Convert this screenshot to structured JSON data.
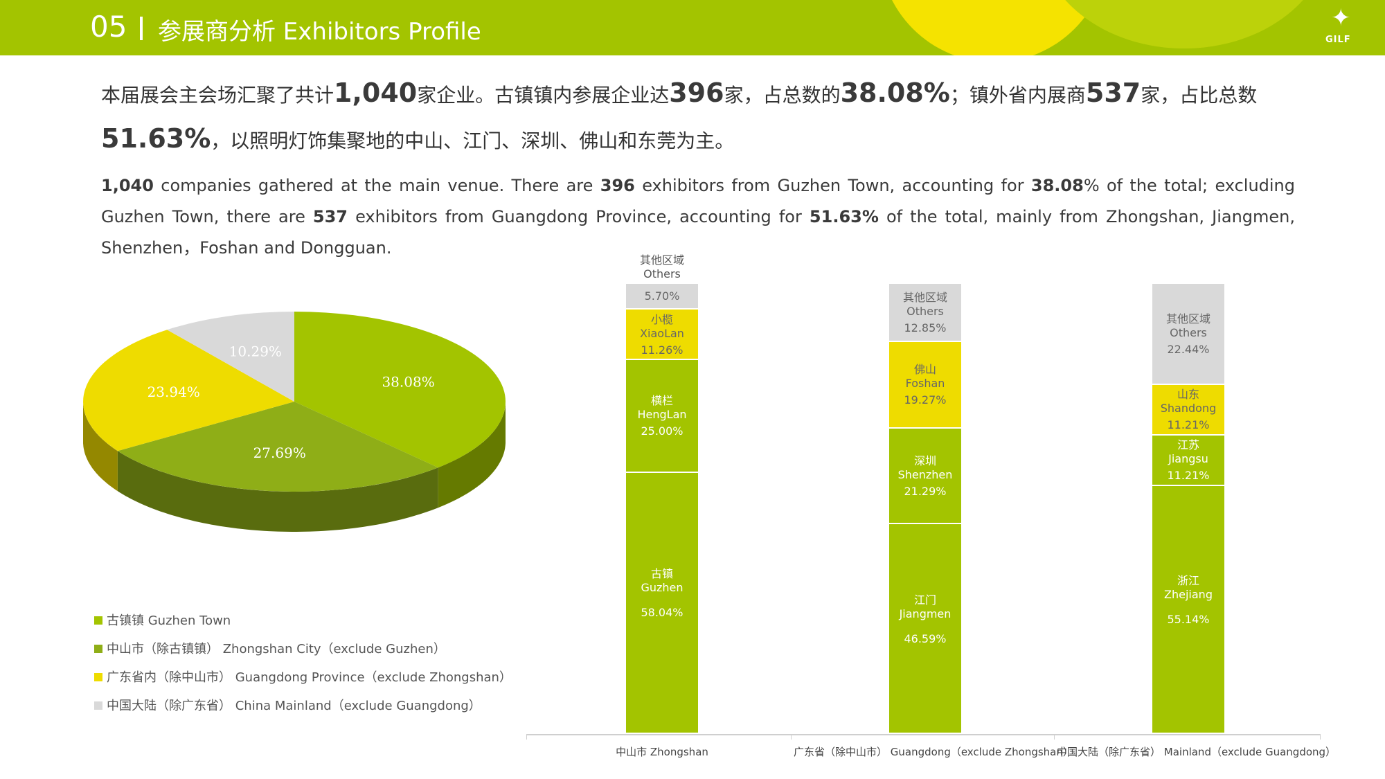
{
  "header": {
    "number": "05",
    "title": "参展商分析 Exhibitors Profile",
    "logo_text": "GILF"
  },
  "text": {
    "cn_line1": {
      "p1": "本届展会主会场汇聚了共计",
      "n1": "1,040",
      "p2": "家企业。古镇镇内参展企业达",
      "n2": "396",
      "p3": "家，占总数的",
      "n3": "38.08%",
      "p4": "；镇外省内展商",
      "n4": "537",
      "p5": "家，占比总数"
    },
    "cn_line2": {
      "n5": "51.63%",
      "p6": "，以照明灯饰集聚地的中山、江门、深圳、佛山和东莞为主。"
    },
    "en": {
      "b1": "1,040",
      "t1": " companies gathered at the main venue. There are ",
      "b2": "396",
      "t2": " exhibitors from Guzhen Town, accounting for ",
      "b3": "38.08",
      "t3": "% of the total; excluding Guzhen Town, there are ",
      "b4": "537",
      "t4": " exhibitors from Guangdong Province, accounting for ",
      "b5": "51.63%",
      "t5": " of the total, mainly from Zhongshan, Jiangmen, Shenzhen，Foshan and Dongguan."
    }
  },
  "colors": {
    "green_bright": "#a3c400",
    "green_dark": "#8fae17",
    "yellow": "#eedc00",
    "gray": "#d9d9d9"
  },
  "chart_data": [
    {
      "type": "pie",
      "slices": [
        {
          "label": "古镇镇 Guzhen Town",
          "value": 38.08,
          "display": "38.08%",
          "color": "#a3c400"
        },
        {
          "label": "中山市（除古镇镇） Zhongshan City（exclude Guzhen）",
          "value": 27.69,
          "display": "27.69%",
          "color": "#8fae17"
        },
        {
          "label": "广东省内（除中山市） Guangdong Province（exclude Zhongshan）",
          "value": 23.94,
          "display": "23.94%",
          "color": "#eedc00"
        },
        {
          "label": "中国大陆（除广东省） China Mainland（exclude Guangdong）",
          "value": 10.29,
          "display": "10.29%",
          "color": "#d9d9d9"
        }
      ]
    },
    {
      "type": "bar",
      "stacked": true,
      "categories": [
        "中山市 Zhongshan",
        "广东省（除中山市） Guangdong（exclude Zhongshan）",
        "中国大陆（除广东省） Mainland（exclude Guangdong）"
      ],
      "stacks": [
        [
          {
            "cn": "古镇",
            "en": "Guzhen",
            "value": 58.04,
            "display": "58.04%",
            "color": "#a3c400"
          },
          {
            "cn": "横栏",
            "en": "HengLan",
            "value": 25.0,
            "display": "25.00%",
            "color": "#a3c400"
          },
          {
            "cn": "小榄",
            "en": "XiaoLan",
            "value": 11.26,
            "display": "11.26%",
            "color": "#eedc00"
          },
          {
            "cn": "其他区域",
            "en": "Others",
            "value": 5.7,
            "display": "5.70%",
            "color": "#d9d9d9"
          }
        ],
        [
          {
            "cn": "江门",
            "en": "Jiangmen",
            "value": 46.59,
            "display": "46.59%",
            "color": "#a3c400"
          },
          {
            "cn": "深圳",
            "en": "Shenzhen",
            "value": 21.29,
            "display": "21.29%",
            "color": "#a3c400"
          },
          {
            "cn": "佛山",
            "en": "Foshan",
            "value": 19.27,
            "display": "19.27%",
            "color": "#eedc00"
          },
          {
            "cn": "其他区域",
            "en": "Others",
            "value": 12.85,
            "display": "12.85%",
            "color": "#d9d9d9"
          }
        ],
        [
          {
            "cn": "浙江",
            "en": "Zhejiang",
            "value": 55.14,
            "display": "55.14%",
            "color": "#a3c400"
          },
          {
            "cn": "江苏",
            "en": "Jiangsu",
            "value": 11.21,
            "display": "11.21%",
            "color": "#a3c400"
          },
          {
            "cn": "山东",
            "en": "Shandong",
            "value": 11.21,
            "display": "11.21%",
            "color": "#eedc00"
          },
          {
            "cn": "其他区域",
            "en": "Others",
            "value": 22.44,
            "display": "22.44%",
            "color": "#d9d9d9"
          }
        ]
      ],
      "ylim": [
        0,
        100
      ],
      "grid": false
    }
  ]
}
